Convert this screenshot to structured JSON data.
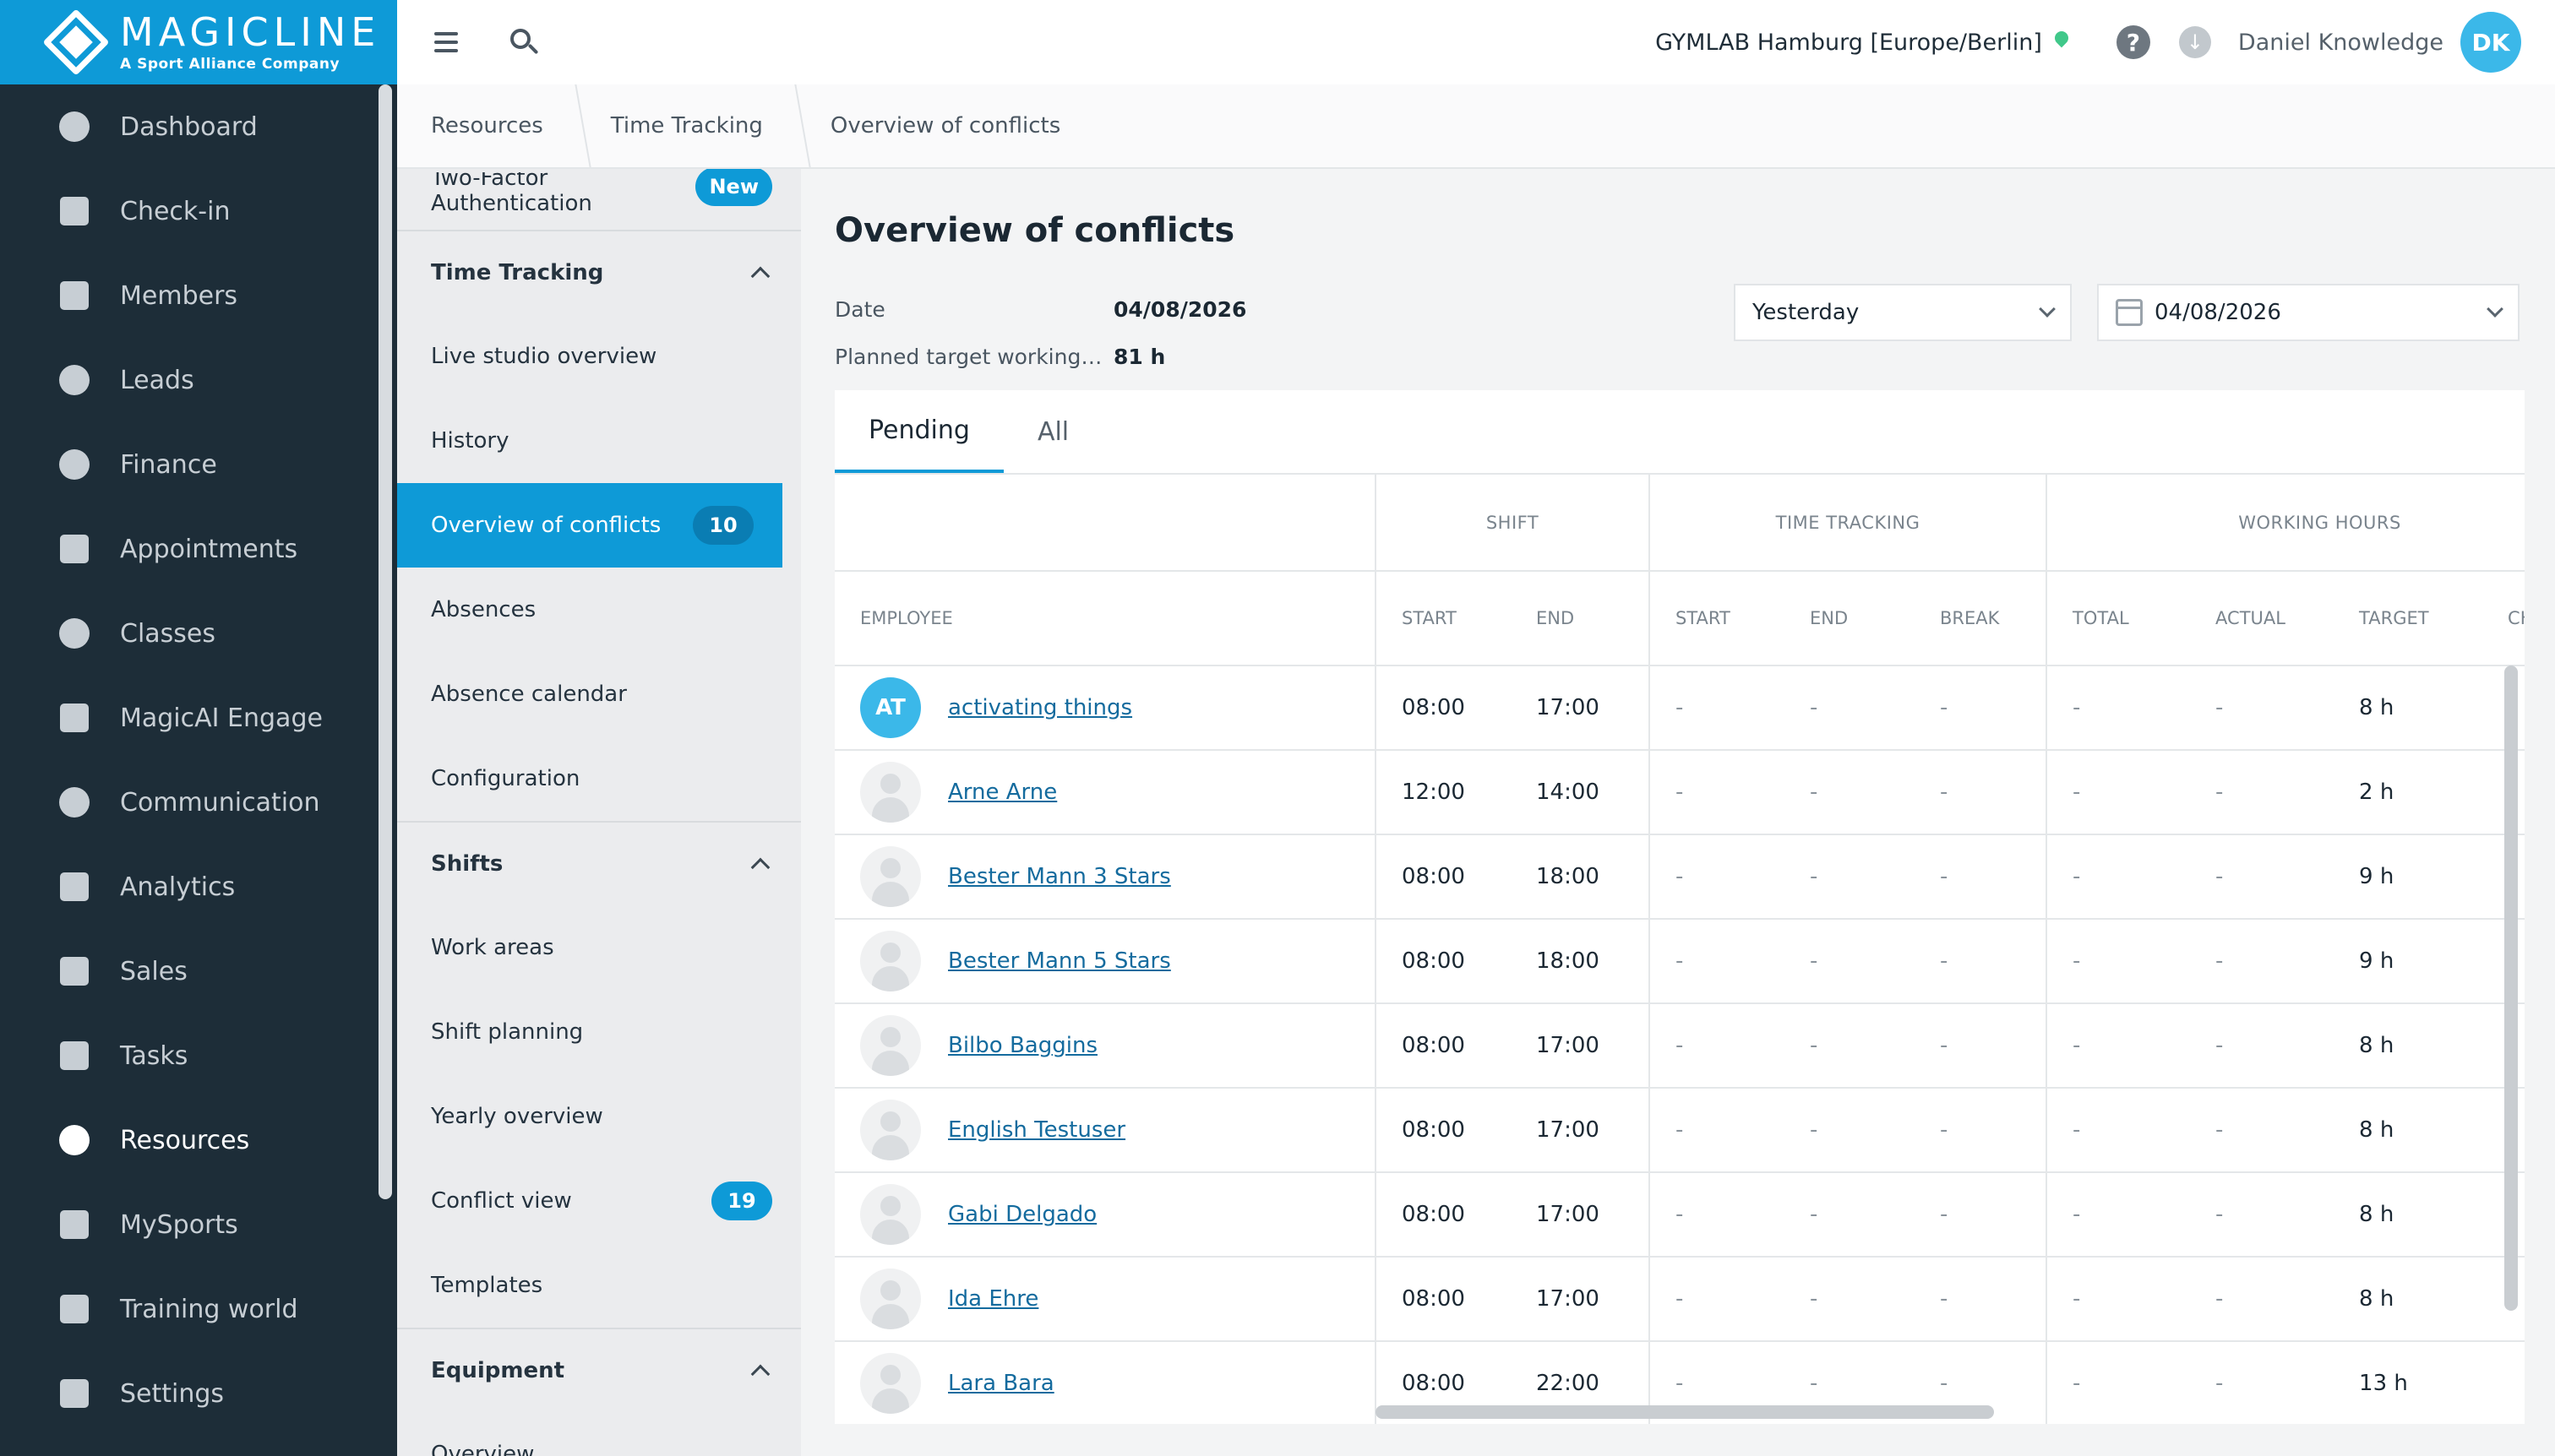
{
  "brand": {
    "name": "MAGICLINE",
    "tagline": "A Sport Alliance Company"
  },
  "nav": [
    {
      "label": "Dashboard",
      "icon": "dashboard-icon"
    },
    {
      "label": "Check-in",
      "icon": "check-in-icon"
    },
    {
      "label": "Members",
      "icon": "members-icon"
    },
    {
      "label": "Leads",
      "icon": "leads-icon"
    },
    {
      "label": "Finance",
      "icon": "finance-icon"
    },
    {
      "label": "Appointments",
      "icon": "calendar-icon"
    },
    {
      "label": "Classes",
      "icon": "stopwatch-icon"
    },
    {
      "label": "MagicAI Engage",
      "icon": "megaphone-icon"
    },
    {
      "label": "Communication",
      "icon": "chat-icon"
    },
    {
      "label": "Analytics",
      "icon": "chart-icon"
    },
    {
      "label": "Sales",
      "icon": "cart-icon"
    },
    {
      "label": "Tasks",
      "icon": "checkbox-icon"
    },
    {
      "label": "Resources",
      "icon": "people-icon"
    },
    {
      "label": "MySports",
      "icon": "grid-dots-icon"
    },
    {
      "label": "Training world",
      "icon": "dumbbell-icon"
    },
    {
      "label": "Settings",
      "icon": "sliders-icon"
    }
  ],
  "topbar": {
    "studio": "GYMLAB Hamburg [Europe/Berlin]",
    "help": "?",
    "download": "↓",
    "user_name": "Daniel Knowledge",
    "user_initials": "DK"
  },
  "breadcrumb": [
    "Resources",
    "Time Tracking",
    "Overview of conflicts"
  ],
  "subnav": {
    "two_factor_1": "Two-Factor",
    "two_factor_2": "Authentication",
    "new_badge": "New",
    "time_tracking": "Time Tracking",
    "live_studio": "Live studio overview",
    "history": "History",
    "overview_conflicts": "Overview of conflicts",
    "overview_conflicts_count": "10",
    "absences": "Absences",
    "absence_calendar": "Absence calendar",
    "configuration": "Configuration",
    "shifts": "Shifts",
    "work_areas": "Work areas",
    "shift_planning": "Shift planning",
    "yearly_overview": "Yearly overview",
    "conflict_view": "Conflict view",
    "conflict_view_count": "19",
    "templates": "Templates",
    "equipment": "Equipment",
    "overview": "Overview"
  },
  "main": {
    "title": "Overview of conflicts",
    "date_label": "Date",
    "date_value": "04/08/2026",
    "planned_label": "Planned target working…",
    "planned_value": "81 h",
    "period_select": "Yesterday",
    "date_select": "04/08/2026"
  },
  "tabs": [
    "Pending",
    "All"
  ],
  "table": {
    "groups": {
      "shift": "SHIFT",
      "time_tracking": "TIME TRACKING",
      "working_hours": "WORKING HOURS"
    },
    "columns": [
      "EMPLOYEE",
      "START",
      "END",
      "START",
      "END",
      "BREAK",
      "TOTAL",
      "ACTUAL",
      "TARGET",
      "CH"
    ],
    "rows": [
      {
        "initials": "AT",
        "name": "activating things",
        "start": "08:00",
        "end": "17:00",
        "tt_start": "-",
        "tt_end": "-",
        "break": "-",
        "total": "-",
        "actual": "-",
        "target": "8 h"
      },
      {
        "initials": "",
        "name": "Arne Arne",
        "start": "12:00",
        "end": "14:00",
        "tt_start": "-",
        "tt_end": "-",
        "break": "-",
        "total": "-",
        "actual": "-",
        "target": "2 h"
      },
      {
        "initials": "",
        "name": "Bester Mann 3 Stars",
        "start": "08:00",
        "end": "18:00",
        "tt_start": "-",
        "tt_end": "-",
        "break": "-",
        "total": "-",
        "actual": "-",
        "target": "9 h"
      },
      {
        "initials": "",
        "name": "Bester Mann 5 Stars",
        "start": "08:00",
        "end": "18:00",
        "tt_start": "-",
        "tt_end": "-",
        "break": "-",
        "total": "-",
        "actual": "-",
        "target": "9 h"
      },
      {
        "initials": "",
        "name": "Bilbo Baggins",
        "start": "08:00",
        "end": "17:00",
        "tt_start": "-",
        "tt_end": "-",
        "break": "-",
        "total": "-",
        "actual": "-",
        "target": "8 h"
      },
      {
        "initials": "",
        "name": "English Testuser",
        "start": "08:00",
        "end": "17:00",
        "tt_start": "-",
        "tt_end": "-",
        "break": "-",
        "total": "-",
        "actual": "-",
        "target": "8 h"
      },
      {
        "initials": "",
        "name": "Gabi Delgado",
        "start": "08:00",
        "end": "17:00",
        "tt_start": "-",
        "tt_end": "-",
        "break": "-",
        "total": "-",
        "actual": "-",
        "target": "8 h"
      },
      {
        "initials": "",
        "name": "Ida Ehre",
        "start": "08:00",
        "end": "17:00",
        "tt_start": "-",
        "tt_end": "-",
        "break": "-",
        "total": "-",
        "actual": "-",
        "target": "8 h"
      },
      {
        "initials": "",
        "name": "Lara Bara",
        "start": "08:00",
        "end": "22:00",
        "tt_start": "-",
        "tt_end": "-",
        "break": "-",
        "total": "-",
        "actual": "-",
        "target": "13 h"
      }
    ]
  },
  "colors": {
    "brand": "#0e9ad7",
    "sidebar": "#1d2d38",
    "link": "#146b9e",
    "pin": "#40c88a"
  }
}
